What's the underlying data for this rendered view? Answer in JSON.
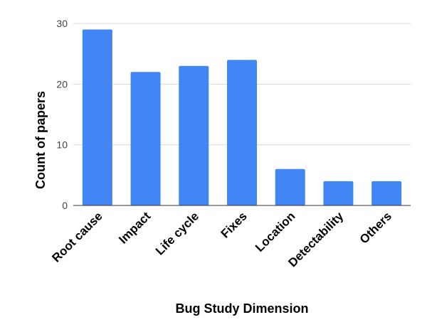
{
  "chart_data": {
    "type": "bar",
    "categories": [
      "Root cause",
      "Impact",
      "Life cycle",
      "Fixes",
      "Location",
      "Detectability",
      "Others"
    ],
    "values": [
      29,
      22,
      23,
      24,
      6,
      4,
      4
    ],
    "xlabel": "Bug Study Dimension",
    "ylabel": "Count of papers",
    "ylim": [
      0,
      30
    ],
    "yticks": [
      0,
      10,
      20,
      30
    ],
    "grid": true,
    "legend": "none",
    "bar_color": "#4285f4"
  }
}
